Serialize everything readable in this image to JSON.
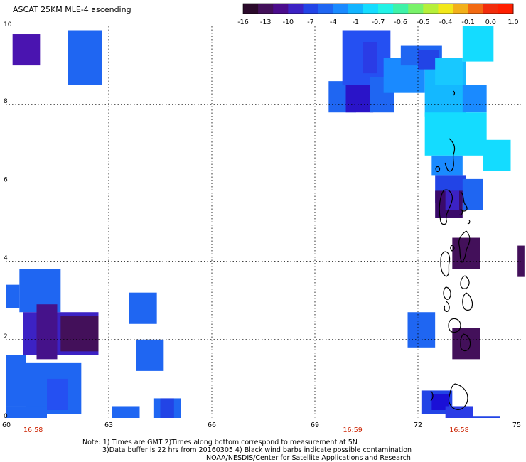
{
  "header": {
    "title": "ASCAT 25KM MLE-4 ascending"
  },
  "colorbar": {
    "labels": [
      "-16",
      "-13",
      "-10",
      "-7",
      "-4",
      "-1",
      "-0.7",
      "-0.6",
      "-0.5",
      "-0.4",
      "-0.1",
      "0.0",
      "1.0"
    ],
    "colors": [
      "#2b0a2b",
      "#43105a",
      "#4b0c8c",
      "#3c22c4",
      "#2244e6",
      "#1f66f2",
      "#1a8aff",
      "#12b4ff",
      "#14dcff",
      "#22f2e6",
      "#3ef2a8",
      "#79f26a",
      "#b6ef3a",
      "#f2e81a",
      "#f2b01a",
      "#f26a12",
      "#f22d0c",
      "#ff1e00"
    ]
  },
  "axes": {
    "x_ticks": [
      {
        "value": 60,
        "label": "60"
      },
      {
        "value": 63,
        "label": "63"
      },
      {
        "value": 66,
        "label": "66"
      },
      {
        "value": 69,
        "label": "69"
      },
      {
        "value": 72,
        "label": "72"
      },
      {
        "value": 75,
        "label": "75"
      }
    ],
    "y_ticks": [
      {
        "value": 0,
        "label": "0"
      },
      {
        "value": 2,
        "label": "2"
      },
      {
        "value": 4,
        "label": "4"
      },
      {
        "value": 6,
        "label": "6"
      },
      {
        "value": 8,
        "label": "8"
      },
      {
        "value": 10,
        "label": "10"
      }
    ],
    "time_labels": [
      {
        "lon": 60.8,
        "text": "16:58"
      },
      {
        "lon": 70.1,
        "text": "16:59"
      },
      {
        "lon": 73.2,
        "text": "16:58"
      }
    ]
  },
  "grid_on": true,
  "chart_data": {
    "type": "heatmap",
    "x_range": [
      60,
      75
    ],
    "y_range": [
      0,
      10
    ],
    "xlabel": "",
    "ylabel": "",
    "colorbar_labels": [
      "-16",
      "-13",
      "-10",
      "-7",
      "-4",
      "-1",
      "-0.7",
      "-0.6",
      "-0.5",
      "-0.4",
      "-0.1",
      "0.0",
      "1.0"
    ],
    "cells": [
      {
        "lon0": 60.2,
        "lat0": 9.0,
        "lon1": 61.0,
        "lat1": 9.8,
        "color": "#4a14b0"
      },
      {
        "lon0": 61.8,
        "lat0": 8.5,
        "lon1": 62.8,
        "lat1": 9.9,
        "color": "#1f66f2"
      },
      {
        "lon0": 69.4,
        "lat0": 7.8,
        "lon1": 70.2,
        "lat1": 8.6,
        "color": "#1f66f2"
      },
      {
        "lon0": 69.8,
        "lat0": 8.5,
        "lon1": 71.2,
        "lat1": 9.9,
        "color": "#2550f2"
      },
      {
        "lon0": 70.4,
        "lat0": 8.8,
        "lon1": 70.8,
        "lat1": 9.6,
        "color": "#2a3ce6"
      },
      {
        "lon0": 69.9,
        "lat0": 7.8,
        "lon1": 70.7,
        "lat1": 8.5,
        "color": "#2a14c8"
      },
      {
        "lon0": 70.6,
        "lat0": 7.8,
        "lon1": 71.3,
        "lat1": 8.7,
        "color": "#1f66f2"
      },
      {
        "lon0": 71.0,
        "lat0": 8.3,
        "lon1": 72.2,
        "lat1": 9.2,
        "color": "#1a8aff"
      },
      {
        "lon0": 71.5,
        "lat0": 9.0,
        "lon1": 72.7,
        "lat1": 9.5,
        "color": "#1f66f2"
      },
      {
        "lon0": 72.2,
        "lat0": 7.7,
        "lon1": 73.4,
        "lat1": 9.1,
        "color": "#14b8ff"
      },
      {
        "lon0": 72.0,
        "lat0": 8.9,
        "lon1": 72.6,
        "lat1": 9.4,
        "color": "#2244e6"
      },
      {
        "lon0": 72.5,
        "lat0": 8.5,
        "lon1": 73.3,
        "lat1": 9.2,
        "color": "#18c8ff"
      },
      {
        "lon0": 73.3,
        "lat0": 9.1,
        "lon1": 74.2,
        "lat1": 10.0,
        "color": "#14dcff"
      },
      {
        "lon0": 73.3,
        "lat0": 7.8,
        "lon1": 74.0,
        "lat1": 8.5,
        "color": "#1a8aff"
      },
      {
        "lon0": 72.2,
        "lat0": 6.7,
        "lon1": 74.0,
        "lat1": 7.8,
        "color": "#14dcff"
      },
      {
        "lon0": 73.9,
        "lat0": 6.3,
        "lon1": 74.7,
        "lat1": 7.1,
        "color": "#14dcff"
      },
      {
        "lon0": 72.4,
        "lat0": 6.2,
        "lon1": 73.3,
        "lat1": 6.7,
        "color": "#1a8aff"
      },
      {
        "lon0": 72.5,
        "lat0": 5.5,
        "lon1": 73.4,
        "lat1": 6.2,
        "color": "#2244e6"
      },
      {
        "lon0": 73.3,
        "lat0": 5.3,
        "lon1": 73.9,
        "lat1": 6.1,
        "color": "#1f66f2"
      },
      {
        "lon0": 72.5,
        "lat0": 5.1,
        "lon1": 73.3,
        "lat1": 5.8,
        "color": "#3a0a6a"
      },
      {
        "lon0": 72.8,
        "lat0": 5.3,
        "lon1": 73.2,
        "lat1": 5.8,
        "color": "#3c22c4"
      },
      {
        "lon0": 73.0,
        "lat0": 3.8,
        "lon1": 73.8,
        "lat1": 4.6,
        "color": "#43105a"
      },
      {
        "lon0": 74.9,
        "lat0": 3.6,
        "lon1": 75.1,
        "lat1": 4.4,
        "color": "#43105a"
      },
      {
        "lon0": 73.0,
        "lat0": 1.5,
        "lon1": 73.8,
        "lat1": 2.3,
        "color": "#43105a"
      },
      {
        "lon0": 71.7,
        "lat0": 1.8,
        "lon1": 72.5,
        "lat1": 2.7,
        "color": "#1f66f2"
      },
      {
        "lon0": 72.1,
        "lat0": 0.1,
        "lon1": 73.0,
        "lat1": 0.7,
        "color": "#2244e6"
      },
      {
        "lon0": 72.4,
        "lat0": 0.2,
        "lon1": 72.9,
        "lat1": 0.6,
        "color": "#1a10d6"
      },
      {
        "lon0": 72.8,
        "lat0": 0.0,
        "lon1": 73.6,
        "lat1": 0.3,
        "color": "#2a3ce6"
      },
      {
        "lon0": 73.6,
        "lat0": 0.0,
        "lon1": 74.4,
        "lat1": 0.05,
        "color": "#2244e6"
      },
      {
        "lon0": 63.6,
        "lat0": 2.4,
        "lon1": 64.4,
        "lat1": 3.2,
        "color": "#1f66f2"
      },
      {
        "lon0": 63.8,
        "lat0": 1.2,
        "lon1": 64.6,
        "lat1": 2.0,
        "color": "#1f66f2"
      },
      {
        "lon0": 63.1,
        "lat0": 0.0,
        "lon1": 63.9,
        "lat1": 0.3,
        "color": "#1f66f2"
      },
      {
        "lon0": 64.3,
        "lat0": 0.0,
        "lon1": 65.1,
        "lat1": 0.5,
        "color": "#1f66f2"
      },
      {
        "lon0": 64.5,
        "lat0": 0.0,
        "lon1": 64.9,
        "lat1": 0.5,
        "color": "#2244e6"
      },
      {
        "lon0": 60.0,
        "lat0": 2.8,
        "lon1": 60.4,
        "lat1": 3.4,
        "color": "#1f66f2"
      },
      {
        "lon0": 60.4,
        "lat0": 2.7,
        "lon1": 61.6,
        "lat1": 3.8,
        "color": "#1f66f2"
      },
      {
        "lon0": 60.5,
        "lat0": 1.6,
        "lon1": 62.7,
        "lat1": 2.7,
        "color": "#3c22c4"
      },
      {
        "lon0": 60.9,
        "lat0": 1.5,
        "lon1": 61.5,
        "lat1": 2.9,
        "color": "#45128a"
      },
      {
        "lon0": 61.6,
        "lat0": 1.7,
        "lon1": 62.7,
        "lat1": 2.6,
        "color": "#43105a"
      },
      {
        "lon0": 60.0,
        "lat0": 0.3,
        "lon1": 60.6,
        "lat1": 1.6,
        "color": "#1f66f2"
      },
      {
        "lon0": 60.6,
        "lat0": 0.1,
        "lon1": 62.2,
        "lat1": 1.4,
        "color": "#1f66f2"
      },
      {
        "lon0": 60.0,
        "lat0": 0.0,
        "lon1": 61.2,
        "lat1": 0.3,
        "color": "#1f66f2"
      },
      {
        "lon0": 61.2,
        "lat0": 0.2,
        "lon1": 61.8,
        "lat1": 1.0,
        "color": "#2550f2"
      }
    ]
  },
  "footer": {
    "note_line1": "Note: 1) Times are GMT 2)Times along bottom correspond to measurement at 5N",
    "note_line2": "3)Data buffer is 22 hrs from 20160305 4) Black wind barbs indicate possible contamination",
    "credit": "NOAA/NESDIS/Center for Satellite Applications and Research"
  }
}
